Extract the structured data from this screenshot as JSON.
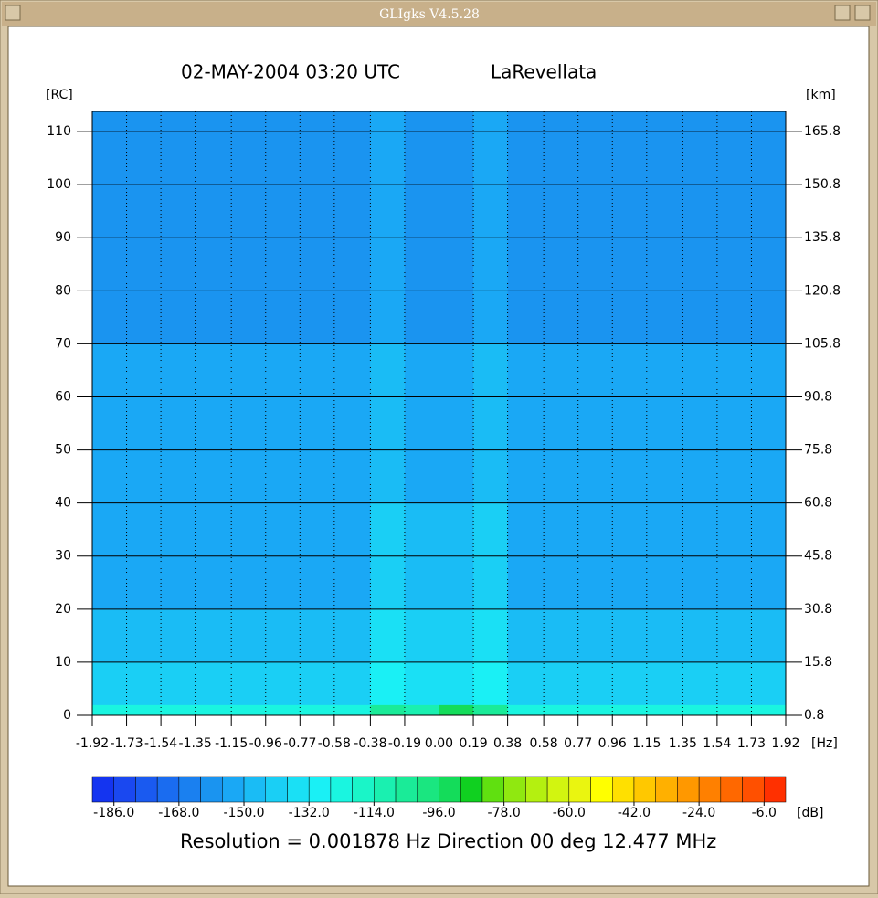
{
  "window_title": "GLIgks V4.5.28",
  "chart_data": {
    "type": "heatmap",
    "title": "02-MAY-2004 03:20 UTC",
    "subtitle": "LaRevellata",
    "y_label": "[RC]",
    "y2_label": "[km]",
    "x_label": "[Hz]",
    "colorbar_label": "[dB]",
    "annotation": "Resolution = 0.001878 Hz  Direction  00 deg   12.477 MHz",
    "xlim": [
      -1.92,
      1.92
    ],
    "xticks": [
      -1.92,
      -1.73,
      -1.54,
      -1.35,
      -1.15,
      -0.96,
      -0.77,
      -0.58,
      -0.38,
      -0.19,
      {
        "value": 0,
        "label": "0.00"
      },
      0.19,
      0.38,
      0.58,
      0.77,
      0.96,
      1.15,
      1.35,
      1.54,
      1.73,
      1.92
    ],
    "ylim": [
      0,
      113.8
    ],
    "yticks": [
      0,
      10,
      20,
      30,
      40,
      50,
      60,
      70,
      80,
      90,
      100,
      110
    ],
    "y2lim": [
      0.8,
      171.5
    ],
    "y2ticks": [
      0.8,
      15.8,
      30.8,
      45.8,
      60.8,
      75.8,
      90.8,
      105.8,
      120.8,
      135.8,
      150.8,
      165.8
    ],
    "grid": true,
    "x_edges": [
      -1.92,
      -1.73,
      -1.54,
      -1.35,
      -1.15,
      -0.96,
      -0.77,
      -0.58,
      -0.38,
      -0.19,
      0,
      0.19,
      0.38,
      0.58,
      0.77,
      0.96,
      1.15,
      1.35,
      1.54,
      1.73,
      1.92
    ],
    "y_edges": [
      0,
      2,
      10,
      20,
      40,
      70,
      113.8
    ],
    "z": [
      [
        -126,
        -126,
        -126,
        -126,
        -126,
        -126,
        -126,
        -124,
        -105,
        -112,
        -96,
        -105,
        -124,
        -126,
        -126,
        -126,
        -126,
        -126,
        -126,
        -126
      ],
      [
        -144,
        -144,
        -144,
        -144,
        -144,
        -144,
        -144,
        -140,
        -130,
        -136,
        -134,
        -130,
        -140,
        -144,
        -144,
        -144,
        -144,
        -144,
        -144,
        -144
      ],
      [
        -150,
        -150,
        -150,
        -150,
        -150,
        -150,
        -150,
        -148,
        -138,
        -142,
        -142,
        -138,
        -148,
        -150,
        -150,
        -150,
        -150,
        -150,
        -150,
        -150
      ],
      [
        -152,
        -152,
        -152,
        -152,
        -152,
        -152,
        -152,
        -152,
        -142,
        -148,
        -148,
        -144,
        -152,
        -152,
        -152,
        -152,
        -152,
        -152,
        -152,
        -152
      ],
      [
        -156,
        -156,
        -156,
        -156,
        -156,
        -156,
        -156,
        -156,
        -146,
        -154,
        -154,
        -148,
        -156,
        -156,
        -156,
        -156,
        -156,
        -156,
        -156,
        -156
      ],
      [
        -158,
        -158,
        -158,
        -158,
        -158,
        -158,
        -158,
        -158,
        -152,
        -158,
        -158,
        -154,
        -158,
        -158,
        -158,
        -158,
        -158,
        -158,
        -158,
        -158
      ]
    ],
    "clim": [
      -192,
      0
    ],
    "colorscale": [
      "#1434f0",
      "#1a48f0",
      "#1a5af0",
      "#1a6cf0",
      "#1a80f0",
      "#1a94f0",
      "#1aa8f5",
      "#1abcf5",
      "#1acff5",
      "#1ae0f5",
      "#1af0f5",
      "#1af5e0",
      "#1af5c8",
      "#1af0b0",
      "#1aeb98",
      "#1ae680",
      "#14dc5a",
      "#10d020",
      "#60e010",
      "#90e810",
      "#b4f010",
      "#d2f510",
      "#eaf510",
      "#ffff00",
      "#ffe000",
      "#ffc800",
      "#ffb000",
      "#ff9800",
      "#ff8000",
      "#ff6800",
      "#ff5000",
      "#ff3000"
    ],
    "cticks": [
      {
        "value": -186,
        "label": "-186.0"
      },
      {
        "value": -168,
        "label": "-168.0"
      },
      {
        "value": -150,
        "label": "-150.0"
      },
      {
        "value": -132,
        "label": "-132.0"
      },
      {
        "value": -114,
        "label": "-114.0"
      },
      {
        "value": -96,
        "label": "-96.0"
      },
      {
        "value": -78,
        "label": "-78.0"
      },
      {
        "value": -60,
        "label": "-60.0"
      },
      {
        "value": -42,
        "label": "-42.0"
      },
      {
        "value": -24,
        "label": "-24.0"
      },
      {
        "value": -6,
        "label": "-6.0"
      }
    ]
  }
}
